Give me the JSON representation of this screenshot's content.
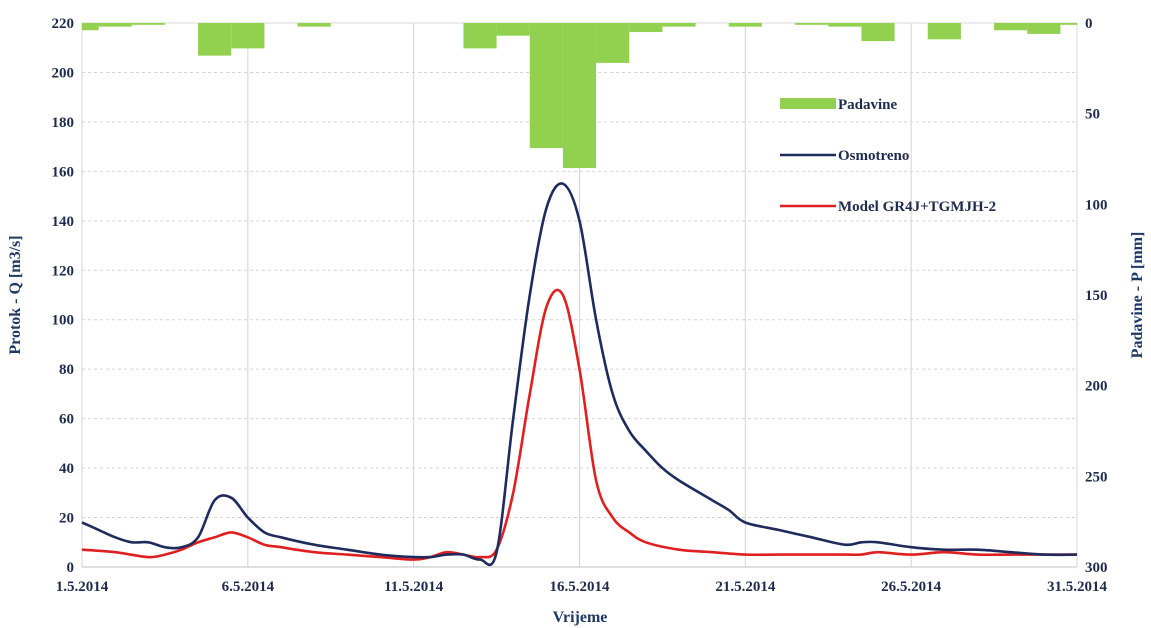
{
  "chart_data": {
    "type": "line",
    "xlabel": "Vrijeme",
    "ylabel": "Protok - Q [m3/s]",
    "y2label": "Padavine - P [mm]",
    "ylim": [
      0,
      220
    ],
    "y2lim": [
      0,
      300
    ],
    "y2_inverted": true,
    "yticks": [
      0,
      20,
      40,
      60,
      80,
      100,
      120,
      140,
      160,
      180,
      200,
      220
    ],
    "y2ticks": [
      0,
      50,
      100,
      150,
      200,
      250,
      300
    ],
    "xlim": [
      1,
      31
    ],
    "xticks": [
      {
        "day": 1,
        "label": "1.5.2014"
      },
      {
        "day": 6,
        "label": "6.5.2014"
      },
      {
        "day": 11,
        "label": "11.5.2014"
      },
      {
        "day": 16,
        "label": "16.5.2014"
      },
      {
        "day": 21,
        "label": "21.5.2014"
      },
      {
        "day": 26,
        "label": "26.5.2014"
      },
      {
        "day": 31,
        "label": "31.5.2014"
      }
    ],
    "grid": true,
    "legend_position": "right",
    "series": [
      {
        "name": "Padavine",
        "kind": "bar",
        "axis": "right",
        "color": "#92d050",
        "x": [
          1,
          2,
          3,
          4,
          5,
          6,
          7,
          8,
          9,
          10,
          11,
          12,
          13,
          14,
          15,
          16,
          17,
          18,
          19,
          20,
          21,
          22,
          23,
          24,
          25,
          26,
          27,
          28,
          29,
          30,
          31
        ],
        "values": [
          4,
          2,
          1,
          0,
          18,
          14,
          0,
          2,
          0,
          0,
          0,
          0,
          14,
          7,
          69,
          80,
          22,
          5,
          2,
          0,
          2,
          0,
          1,
          2,
          10,
          0,
          9,
          0,
          4,
          6,
          1
        ]
      },
      {
        "name": "Osmotreno",
        "kind": "line",
        "axis": "left",
        "color": "#1f2b5c",
        "x": [
          1,
          1.5,
          2,
          2.5,
          3,
          3.5,
          4,
          4.5,
          5,
          5.5,
          6,
          6.5,
          7,
          8,
          9,
          10,
          11,
          11.5,
          12,
          12.5,
          13,
          13.5,
          14,
          14.5,
          15,
          15.5,
          16,
          16.5,
          17,
          17.5,
          18,
          18.5,
          19,
          20,
          20.5,
          21,
          22,
          23,
          24,
          24.5,
          25,
          26,
          27,
          28,
          29,
          30,
          31
        ],
        "values": [
          18,
          15,
          12,
          10,
          10,
          8,
          8,
          12,
          27,
          28,
          20,
          14,
          12,
          9,
          7,
          5,
          4,
          4,
          5,
          5,
          3,
          6,
          60,
          110,
          145,
          155,
          140,
          100,
          70,
          55,
          47,
          40,
          35,
          27,
          23,
          18,
          15,
          12,
          9,
          10,
          10,
          8,
          7,
          7,
          6,
          5,
          5
        ]
      },
      {
        "name": "Model GR4J+TGMJH-2",
        "kind": "line",
        "axis": "left",
        "color": "#e02020",
        "x": [
          1,
          2,
          3,
          3.5,
          4,
          4.5,
          5,
          5.5,
          6,
          6.5,
          7,
          8,
          9,
          10,
          11,
          11.5,
          12,
          12.5,
          13,
          13.5,
          14,
          14.5,
          15,
          15.5,
          16,
          16.5,
          17,
          17.5,
          18,
          19,
          20,
          21,
          22,
          23,
          24,
          24.5,
          25,
          26,
          27,
          28,
          29,
          30,
          31
        ],
        "values": [
          7,
          6,
          4,
          5,
          7,
          10,
          12,
          14,
          12,
          9,
          8,
          6,
          5,
          4,
          3,
          4,
          6,
          5,
          4,
          7,
          30,
          70,
          105,
          110,
          80,
          35,
          20,
          14,
          10,
          7,
          6,
          5,
          5,
          5,
          5,
          5,
          6,
          5,
          6,
          5,
          5,
          5,
          5
        ]
      }
    ]
  }
}
